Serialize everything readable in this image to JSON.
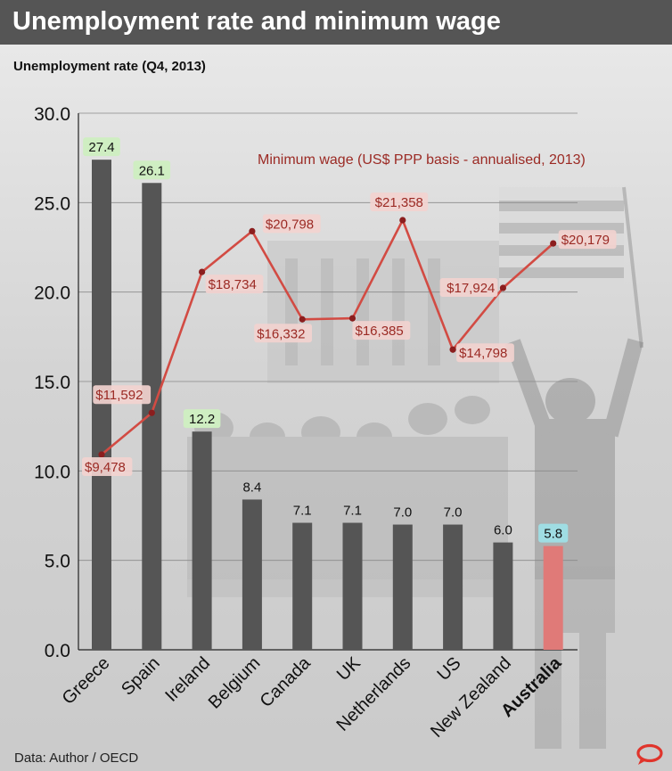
{
  "header": {
    "title": "Unemployment rate and minimum wage",
    "subtitle": "Unemployment rate (Q4, 2013)"
  },
  "footer": {
    "source": "Data: Author / OECD"
  },
  "colors": {
    "title_bar": "#555555",
    "bar": "#555555",
    "bar_highlight": "#e07a78",
    "line": "#d24b43",
    "line_point": "#8b1e1e",
    "line_label_text": "#9b2a24",
    "line_label_bg": "#f2d3cf",
    "badge_green": "#cfeec2",
    "badge_teal": "#9fdde3",
    "logo": "#e0342b"
  },
  "icons": {
    "logo": "the-conversation-logo-icon"
  },
  "chart_data": [
    {
      "type": "bar",
      "title": "Unemployment rate (Q4, 2013)",
      "categories": [
        "Greece",
        "Spain",
        "Ireland",
        "Belgium",
        "Canada",
        "UK",
        "Netherlands",
        "US",
        "New Zealand",
        "Australia"
      ],
      "values": [
        27.4,
        26.1,
        12.2,
        8.4,
        7.1,
        7.1,
        7.0,
        7.0,
        6.0,
        5.8
      ],
      "value_labels": [
        "27.4",
        "26.1",
        "12.2",
        "8.4",
        "7.1",
        "7.1",
        "7.0",
        "7.0",
        "6.0",
        "5.8"
      ],
      "ylim": [
        0,
        30
      ],
      "y_ticks": [
        "0.0",
        "5.0",
        "10.0",
        "15.0",
        "20.0",
        "25.0",
        "30.0"
      ],
      "highlight_category": "Australia",
      "badge_style": [
        "green",
        "green",
        "green",
        "plain",
        "plain",
        "plain",
        "plain",
        "plain",
        "plain",
        "teal"
      ],
      "grid": true
    },
    {
      "type": "line",
      "title": "Minimum wage (US$ PPP basis - annualised, 2013)",
      "categories": [
        "Greece",
        "Spain",
        "Ireland",
        "Belgium",
        "Canada",
        "UK",
        "Netherlands",
        "US",
        "New Zealand",
        "Australia"
      ],
      "values": [
        9478,
        11592,
        18734,
        20798,
        16332,
        16385,
        21358,
        14798,
        17924,
        20179
      ],
      "value_labels": [
        "$9,478",
        "$11,592",
        "$18,734",
        "$20,798",
        "$16,332",
        "$16,385",
        "$21,358",
        "$14,798",
        "$17,924",
        "$20,179"
      ]
    }
  ]
}
